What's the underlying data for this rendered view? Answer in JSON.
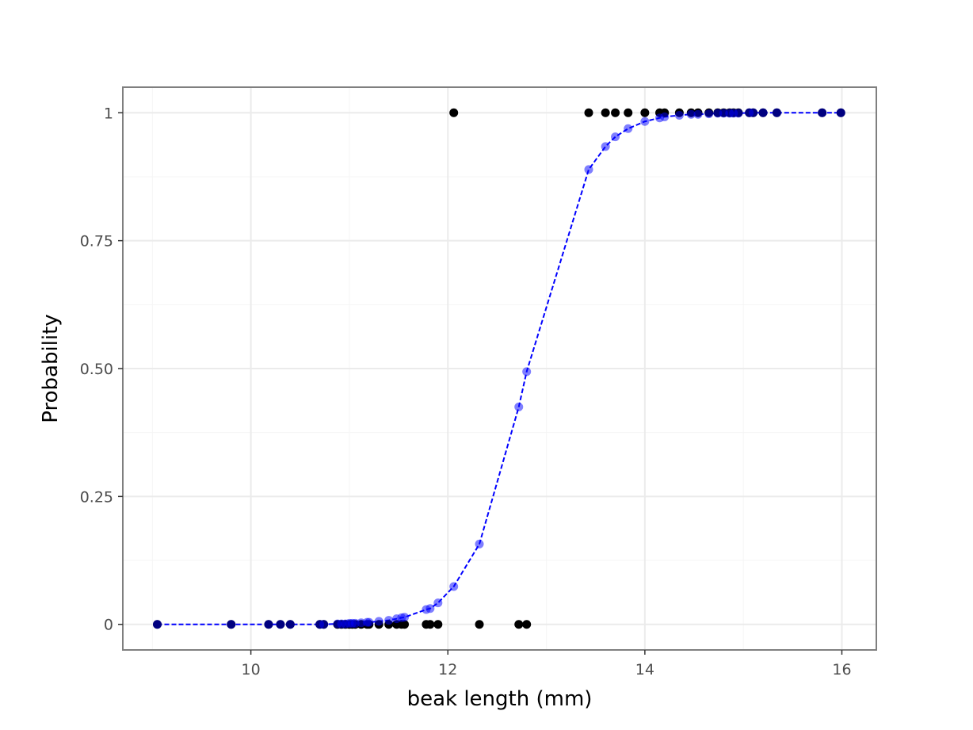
{
  "chart_data": {
    "type": "scatter",
    "xlabel": "beak length (mm)",
    "ylabel": "Probability",
    "xlim": [
      8.7,
      16.35
    ],
    "ylim": [
      -0.05,
      1.05
    ],
    "x_ticks": [
      10,
      12,
      14,
      16
    ],
    "x_tick_labels": [
      "10",
      "12",
      "14",
      "16"
    ],
    "y_ticks": [
      0,
      0.25,
      0.5,
      0.75,
      1
    ],
    "y_tick_labels": [
      "0",
      "0.25",
      "0.50",
      "0.75",
      "1"
    ],
    "grid": true,
    "legend": "none",
    "colors": {
      "observed": "#000000",
      "fitted": "#0000ff",
      "panel_border": "#7f7f7f",
      "grid_major": "#ebebeb",
      "grid_minor": "#f5f5f5"
    },
    "observed": {
      "x": [
        9.05,
        9.8,
        10.18,
        10.3,
        10.4,
        10.7,
        10.74,
        10.88,
        10.92,
        10.96,
        11.0,
        11.03,
        11.06,
        11.12,
        11.18,
        11.2,
        11.3,
        11.4,
        11.48,
        11.53,
        11.56,
        11.78,
        11.82,
        11.9,
        12.32,
        12.72,
        12.8,
        12.06,
        13.43,
        13.6,
        13.7,
        13.83,
        14.0,
        14.15,
        14.2,
        14.35,
        14.47,
        14.54,
        14.65,
        14.74,
        14.8,
        14.86,
        14.9,
        14.95,
        15.06,
        15.1,
        15.2,
        15.34,
        15.8,
        15.99
      ],
      "y": [
        0,
        0,
        0,
        0,
        0,
        0,
        0,
        0,
        0,
        0,
        0,
        0,
        0,
        0,
        0,
        0,
        0,
        0,
        0,
        0,
        0,
        0,
        0,
        0,
        0,
        0,
        0,
        1,
        1,
        1,
        1,
        1,
        1,
        1,
        1,
        1,
        1,
        1,
        1,
        1,
        1,
        1,
        1,
        1,
        1,
        1,
        1,
        1,
        1,
        1
      ]
    },
    "fitted": {
      "x": [
        9.05,
        9.8,
        10.18,
        10.3,
        10.4,
        10.7,
        10.74,
        10.88,
        10.92,
        10.96,
        11.0,
        11.03,
        11.06,
        11.12,
        11.18,
        11.2,
        11.3,
        11.4,
        11.48,
        11.53,
        11.56,
        11.78,
        11.82,
        11.9,
        12.06,
        12.32,
        12.72,
        12.8,
        13.43,
        13.6,
        13.7,
        13.83,
        14.0,
        14.15,
        14.2,
        14.35,
        14.47,
        14.54,
        14.65,
        14.74,
        14.8,
        14.86,
        14.9,
        14.95,
        15.06,
        15.1,
        15.2,
        15.34,
        15.8,
        15.99
      ],
      "y": [
        0.0,
        0.0,
        0.0,
        0.0,
        0.0,
        0.0,
        0.0,
        0.001,
        0.001,
        0.001,
        0.002,
        0.002,
        0.002,
        0.003,
        0.004,
        0.004,
        0.006,
        0.008,
        0.011,
        0.013,
        0.014,
        0.029,
        0.031,
        0.042,
        0.074,
        0.157,
        0.425,
        0.494,
        0.889,
        0.934,
        0.953,
        0.969,
        0.983,
        0.99,
        0.992,
        0.995,
        0.997,
        0.997,
        0.998,
        0.999,
        0.999,
        0.999,
        0.999,
        0.999,
        1.0,
        1.0,
        1.0,
        1.0,
        1.0,
        1.0
      ]
    }
  }
}
